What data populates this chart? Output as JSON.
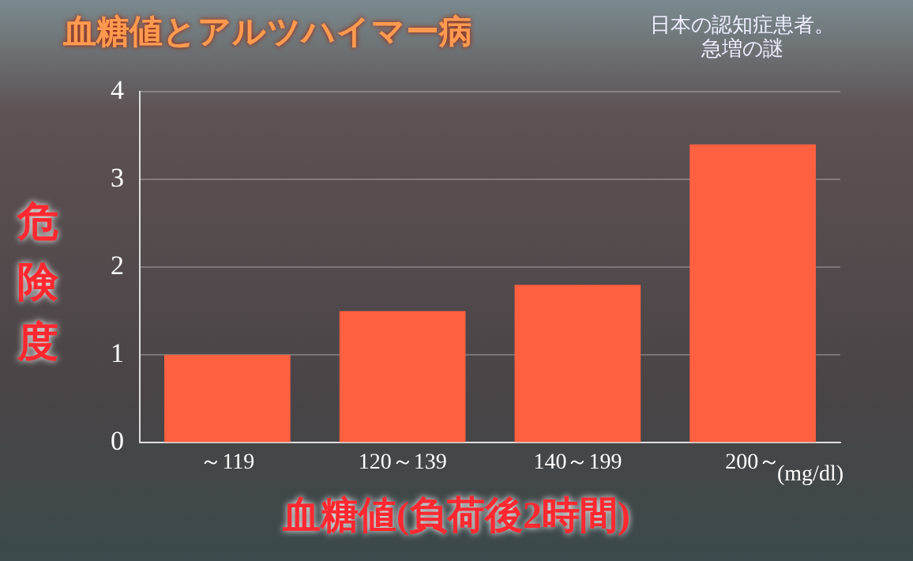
{
  "chart_data": {
    "type": "bar",
    "title": "血糖値とアルツハイマー病",
    "xlabel": "血糖値(負荷後2時間)",
    "ylabel": "危険度",
    "categories": [
      "～119",
      "120～139",
      "140～199",
      "200～"
    ],
    "values": [
      1.0,
      1.5,
      1.8,
      3.4
    ],
    "color": "#ff6040",
    "ylim": [
      0,
      4
    ],
    "yticks": [
      0,
      1,
      2,
      3,
      4
    ],
    "grid": "y",
    "annotations": [
      "(mg/dl)",
      "日本の認知症患者。急増の謎"
    ]
  }
}
